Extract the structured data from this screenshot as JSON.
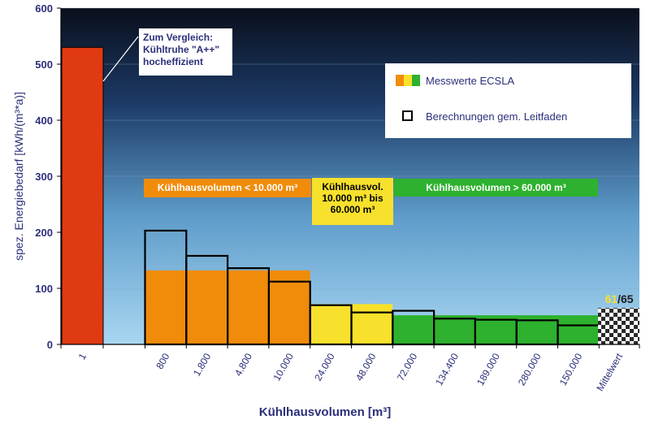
{
  "chart_data": {
    "type": "bar",
    "xlabel": "Kühlhausvolumen [m³]",
    "ylabel": "spez. Energiebedarf [kWh/(m³*a)]",
    "ylim": [
      0,
      600
    ],
    "yticks": [
      "0",
      "100",
      "200",
      "300",
      "400",
      "500",
      "600"
    ],
    "grid": true,
    "categories": [
      "1",
      "800",
      "1.800",
      "4.800",
      "10.000",
      "24.000",
      "48.000",
      "72.000",
      "134.400",
      "189.000",
      "280.000",
      "150.000",
      "Mittelwert"
    ],
    "series": [
      {
        "name": "Messwerte ECSLA",
        "values": [
          530,
          null,
          null,
          null,
          null,
          null,
          null,
          null,
          null,
          null,
          null,
          null,
          61
        ]
      },
      {
        "name": "Berechnungen gem. Leitfaden",
        "values": [
          null,
          203,
          158,
          136,
          112,
          70,
          57,
          60,
          46,
          44,
          43,
          34,
          65
        ]
      }
    ],
    "group_bands": [
      {
        "label": "Kühlhausvolumen < 10.000 m³",
        "value": 132,
        "color": "#f08c0a"
      },
      {
        "label": "Kühlhausvol.\n10.000 m³ bis\n60.000 m³",
        "value": 72,
        "color": "#f7e12c"
      },
      {
        "label": "Kühlhausvolumen > 60.000 m³",
        "value": 52,
        "color": "#2eb12e"
      }
    ],
    "callout": "Zum Vergleich:\nKühltruhe \"A++\"\nhocheffizient",
    "mittelwert_labels": {
      "measured": "61",
      "separator": "/",
      "calculated": "65"
    },
    "legend": {
      "position": "top-right",
      "entries": [
        "Messwerte ECSLA",
        "Berechnungen gem. Leitfaden"
      ]
    },
    "colors": {
      "comparison_bar": "#e03a12",
      "orange": "#f08c0a",
      "yellow": "#f7e12c",
      "green": "#2eb12e",
      "outline": "#000000"
    }
  }
}
